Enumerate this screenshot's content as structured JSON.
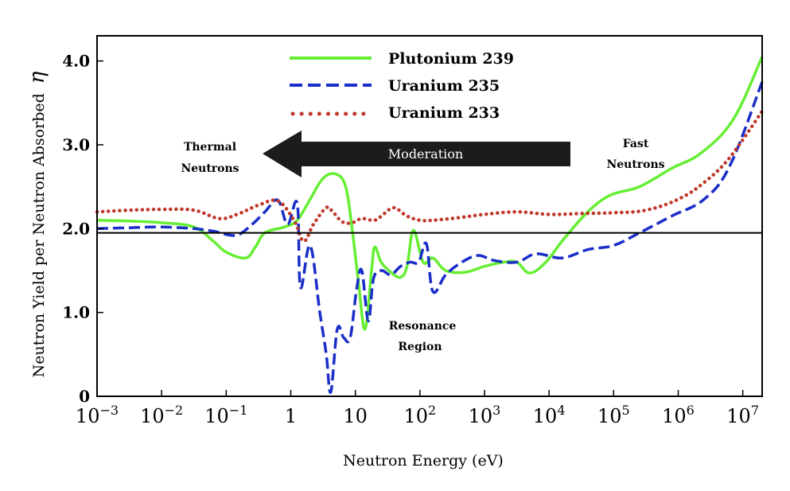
{
  "chart_data": {
    "type": "line",
    "xlabel": "Neutron Energy (eV)",
    "ylabel": "Neutron Yield per Neutron Absorbed",
    "ylabel_symbol": "η",
    "x_scale": "log",
    "xlim_exp": [
      -3,
      7.3
    ],
    "ylim": [
      0,
      4.3
    ],
    "x_ticks": [
      {
        "exp": -3,
        "base": "10",
        "sup": "−3"
      },
      {
        "exp": -2,
        "base": "10",
        "sup": "−2"
      },
      {
        "exp": -1,
        "base": "10",
        "sup": "−1"
      },
      {
        "exp": 0,
        "base": "1",
        "sup": ""
      },
      {
        "exp": 1,
        "base": "10",
        "sup": ""
      },
      {
        "exp": 2,
        "base": "10",
        "sup": "2"
      },
      {
        "exp": 3,
        "base": "10",
        "sup": "3"
      },
      {
        "exp": 4,
        "base": "10",
        "sup": "4"
      },
      {
        "exp": 5,
        "base": "10",
        "sup": "5"
      },
      {
        "exp": 6,
        "base": "10",
        "sup": "6"
      },
      {
        "exp": 7,
        "base": "10",
        "sup": "7"
      }
    ],
    "y_ticks": [
      {
        "value": 0,
        "label": "0"
      },
      {
        "value": 1,
        "label": "1.0"
      },
      {
        "value": 2,
        "label": "2.0"
      },
      {
        "value": 3,
        "label": "3.0"
      },
      {
        "value": 4,
        "label": "4.0"
      }
    ],
    "reference_line": 1.95,
    "series": [
      {
        "name": "Plutonium 239",
        "color": "#66ee33",
        "style": "solid",
        "points": [
          [
            -3,
            2.1
          ],
          [
            -2.5,
            2.09
          ],
          [
            -2,
            2.07
          ],
          [
            -1.5,
            2.02
          ],
          [
            -1.2,
            1.85
          ],
          [
            -1,
            1.72
          ],
          [
            -0.7,
            1.65
          ],
          [
            -0.55,
            1.78
          ],
          [
            -0.4,
            1.95
          ],
          [
            -0.1,
            2.02
          ],
          [
            0.1,
            2.1
          ],
          [
            0.3,
            2.35
          ],
          [
            0.5,
            2.6
          ],
          [
            0.7,
            2.65
          ],
          [
            0.85,
            2.5
          ],
          [
            0.95,
            2.0
          ],
          [
            1.05,
            1.35
          ],
          [
            1.15,
            0.8
          ],
          [
            1.25,
            1.5
          ],
          [
            1.3,
            1.78
          ],
          [
            1.4,
            1.6
          ],
          [
            1.55,
            1.48
          ],
          [
            1.7,
            1.42
          ],
          [
            1.8,
            1.55
          ],
          [
            1.9,
            1.98
          ],
          [
            2.05,
            1.6
          ],
          [
            2.2,
            1.65
          ],
          [
            2.4,
            1.5
          ],
          [
            2.7,
            1.48
          ],
          [
            3.0,
            1.55
          ],
          [
            3.3,
            1.6
          ],
          [
            3.5,
            1.6
          ],
          [
            3.7,
            1.47
          ],
          [
            3.95,
            1.6
          ],
          [
            4.2,
            1.85
          ],
          [
            4.6,
            2.2
          ],
          [
            4.95,
            2.4
          ],
          [
            5.4,
            2.5
          ],
          [
            5.9,
            2.72
          ],
          [
            6.35,
            2.9
          ],
          [
            6.85,
            3.3
          ],
          [
            7.3,
            4.05
          ]
        ]
      },
      {
        "name": "Uranium 235",
        "color": "#1a2ec8",
        "style": "dashed",
        "points": [
          [
            -3,
            2.0
          ],
          [
            -2.5,
            2.01
          ],
          [
            -2,
            2.02
          ],
          [
            -1.5,
            2.0
          ],
          [
            -1.2,
            1.97
          ],
          [
            -0.85,
            1.92
          ],
          [
            -0.6,
            2.05
          ],
          [
            -0.4,
            2.2
          ],
          [
            -0.2,
            2.34
          ],
          [
            -0.05,
            2.05
          ],
          [
            0.1,
            2.3
          ],
          [
            0.15,
            1.3
          ],
          [
            0.3,
            1.8
          ],
          [
            0.45,
            1.0
          ],
          [
            0.55,
            0.5
          ],
          [
            0.62,
            0.05
          ],
          [
            0.72,
            0.8
          ],
          [
            0.82,
            0.7
          ],
          [
            0.92,
            0.7
          ],
          [
            1.02,
            1.28
          ],
          [
            1.1,
            1.5
          ],
          [
            1.2,
            0.9
          ],
          [
            1.28,
            1.4
          ],
          [
            1.4,
            1.5
          ],
          [
            1.55,
            1.45
          ],
          [
            1.7,
            1.55
          ],
          [
            1.85,
            1.6
          ],
          [
            1.98,
            1.6
          ],
          [
            2.1,
            1.82
          ],
          [
            2.2,
            1.25
          ],
          [
            2.4,
            1.45
          ],
          [
            2.65,
            1.6
          ],
          [
            2.9,
            1.68
          ],
          [
            3.15,
            1.62
          ],
          [
            3.5,
            1.6
          ],
          [
            3.8,
            1.7
          ],
          [
            4.2,
            1.65
          ],
          [
            4.6,
            1.75
          ],
          [
            5.0,
            1.8
          ],
          [
            5.4,
            1.95
          ],
          [
            5.9,
            2.15
          ],
          [
            6.4,
            2.35
          ],
          [
            6.8,
            2.75
          ],
          [
            7.3,
            3.75
          ]
        ]
      },
      {
        "name": "Uranium 233",
        "color": "#c0392b",
        "style": "dotted",
        "points": [
          [
            -3,
            2.2
          ],
          [
            -2.5,
            2.22
          ],
          [
            -2,
            2.23
          ],
          [
            -1.5,
            2.22
          ],
          [
            -1.1,
            2.12
          ],
          [
            -0.8,
            2.18
          ],
          [
            -0.5,
            2.28
          ],
          [
            -0.2,
            2.33
          ],
          [
            0.05,
            2.1
          ],
          [
            0.2,
            1.85
          ],
          [
            0.35,
            2.05
          ],
          [
            0.55,
            2.25
          ],
          [
            0.65,
            2.2
          ],
          [
            0.8,
            2.08
          ],
          [
            0.95,
            2.07
          ],
          [
            1.1,
            2.12
          ],
          [
            1.3,
            2.1
          ],
          [
            1.45,
            2.18
          ],
          [
            1.6,
            2.25
          ],
          [
            1.8,
            2.15
          ],
          [
            2.0,
            2.1
          ],
          [
            2.2,
            2.1
          ],
          [
            2.6,
            2.13
          ],
          [
            3.0,
            2.17
          ],
          [
            3.5,
            2.2
          ],
          [
            4.0,
            2.17
          ],
          [
            4.5,
            2.18
          ],
          [
            5.0,
            2.19
          ],
          [
            5.5,
            2.22
          ],
          [
            6.0,
            2.35
          ],
          [
            6.4,
            2.55
          ],
          [
            6.8,
            2.85
          ],
          [
            7.3,
            3.4
          ]
        ]
      }
    ],
    "annotations": {
      "thermal": [
        "Thermal",
        "Neutrons"
      ],
      "fast": [
        "Fast",
        "Neutrons"
      ],
      "resonance": [
        "Resonance",
        "Region"
      ],
      "arrow_label": "Moderation"
    }
  }
}
